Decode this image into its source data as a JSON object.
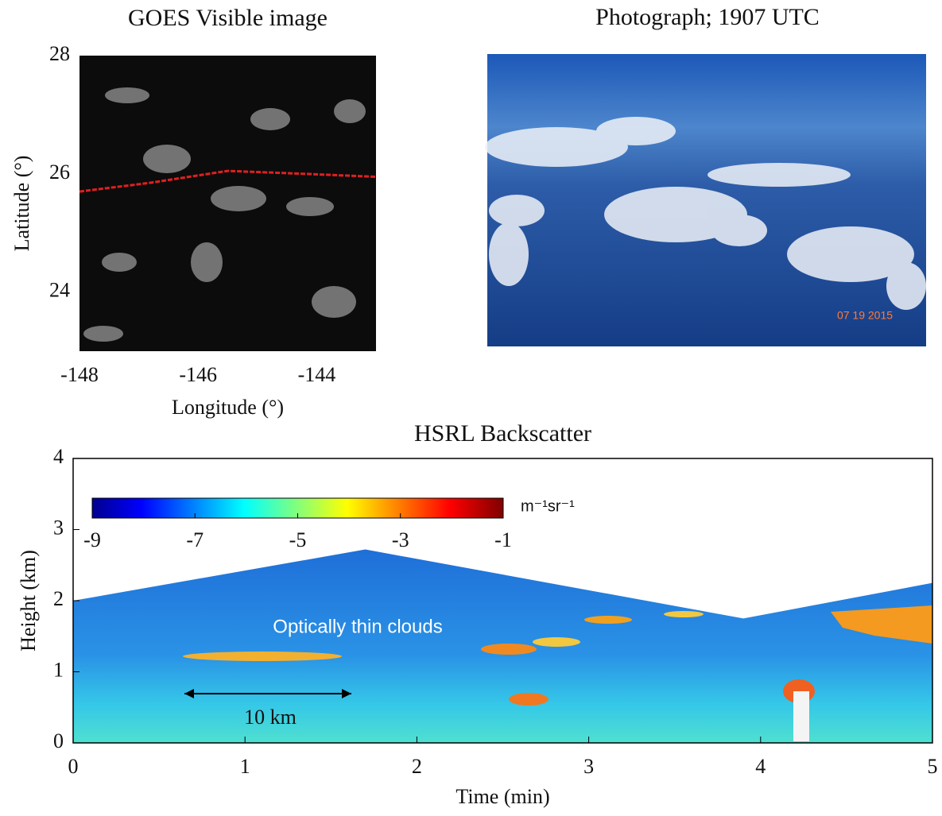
{
  "chart_data": [
    {
      "type": "image",
      "title": "GOES Visible image",
      "xlabel": "Longitude (°)",
      "ylabel": "Latitude (°)",
      "xlim": [
        -148,
        -143
      ],
      "xticks": [
        -148,
        -146,
        -144
      ],
      "ylim": [
        23,
        28
      ],
      "yticks": [
        24,
        26,
        28
      ],
      "track": {
        "color": "#e02020",
        "x": [
          -148,
          -146.8,
          -145.5,
          -144.2,
          -143
        ],
        "y": [
          25.7,
          25.85,
          26.05,
          26.0,
          25.95
        ]
      }
    },
    {
      "type": "photo",
      "title": "Photograph; 1907 UTC",
      "annotations": [
        "07 19 2015"
      ]
    },
    {
      "type": "heatmap",
      "title": "HSRL Backscatter",
      "xlabel": "Time (min)",
      "ylabel": "Height (km)",
      "xlim": [
        0,
        5
      ],
      "xticks": [
        0,
        1,
        2,
        3,
        4,
        5
      ],
      "ylim": [
        0,
        4
      ],
      "yticks": [
        0,
        1,
        2,
        3,
        4
      ],
      "x": [
        0,
        1.7,
        3.9,
        5
      ],
      "values": [
        2.0,
        2.72,
        1.75,
        2.25
      ],
      "colorbar": {
        "lim": [
          -9,
          -1
        ],
        "ticks": [
          -9,
          -7,
          -5,
          -3,
          -1
        ],
        "label": "m⁻¹sr⁻¹"
      },
      "annotations": [
        "Optically thin clouds",
        "10 km"
      ]
    }
  ]
}
